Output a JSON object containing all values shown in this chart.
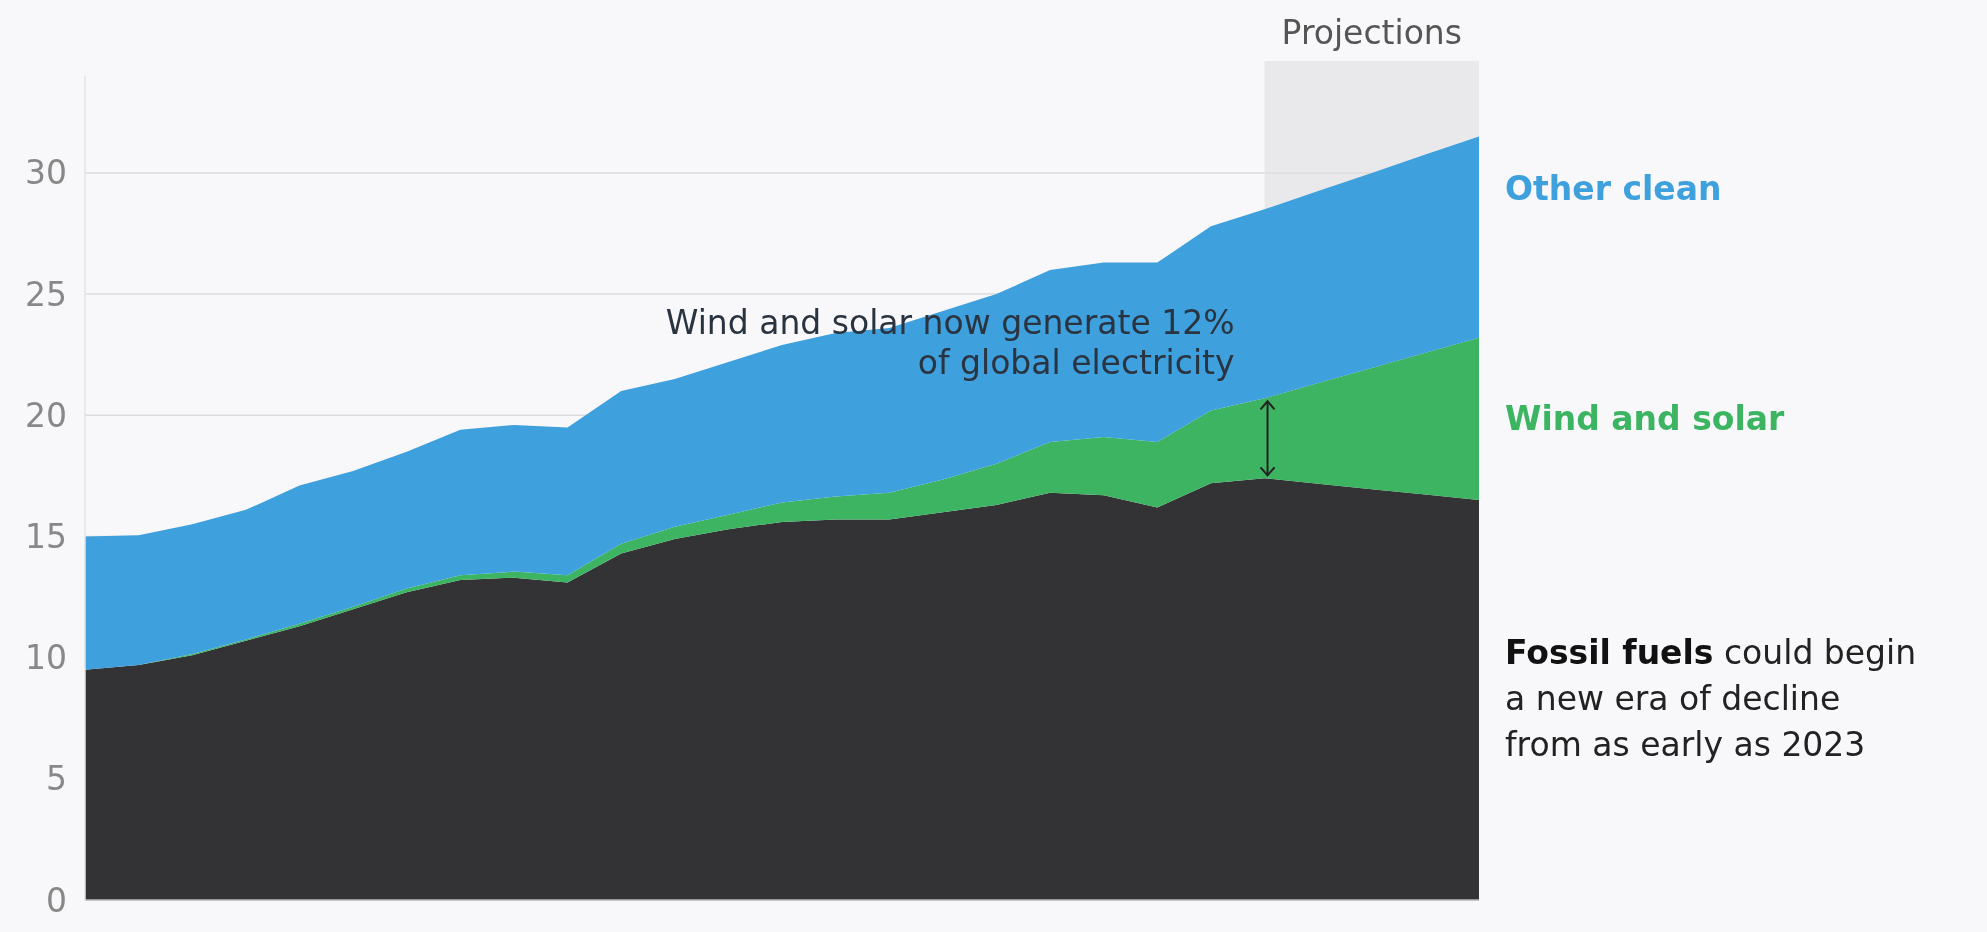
{
  "chart_data": {
    "type": "area",
    "stacked": true,
    "categories": [
      null,
      null,
      null,
      null,
      null,
      null,
      null,
      null,
      null,
      null,
      null,
      null,
      null,
      null,
      null,
      null,
      null,
      null,
      null,
      null,
      null,
      null,
      null,
      null,
      null,
      null,
      null
    ],
    "series": [
      {
        "name": "Fossil fuels",
        "color": "#333335",
        "values": [
          9.5,
          9.7,
          10.1,
          10.7,
          11.3,
          12.0,
          12.7,
          13.2,
          13.3,
          13.1,
          14.3,
          14.9,
          15.3,
          15.6,
          15.7,
          15.7,
          16.0,
          16.3,
          16.8,
          16.7,
          16.2,
          17.2,
          17.4,
          17.18,
          16.95,
          16.73,
          16.5
        ]
      },
      {
        "name": "Wind and solar",
        "color": "#3cb462",
        "values": [
          0,
          0,
          0.05,
          0.05,
          0.1,
          0.1,
          0.15,
          0.2,
          0.25,
          0.3,
          0.4,
          0.5,
          0.6,
          0.8,
          0.95,
          1.1,
          1.35,
          1.7,
          2.1,
          2.4,
          2.7,
          3.0,
          3.3,
          4.15,
          5.0,
          5.85,
          6.7
        ]
      },
      {
        "name": "Other clean",
        "color": "#3ea0dc",
        "values": [
          5.5,
          5.35,
          5.35,
          5.35,
          5.7,
          5.6,
          5.65,
          6.0,
          6.05,
          6.1,
          6.3,
          6.1,
          6.3,
          6.5,
          6.75,
          6.8,
          6.95,
          7.0,
          7.1,
          7.2,
          7.4,
          7.6,
          7.8,
          7.93,
          8.05,
          8.18,
          8.3
        ]
      }
    ],
    "ylim": [
      0,
      34
    ],
    "yticks": [
      0,
      5,
      10,
      15,
      20,
      25,
      30
    ],
    "grid": "y",
    "annotations": [
      "Wind and solar now generate 12% of global electricity",
      "could begin a new era of decline from as early as 2023",
      "Projections"
    ]
  }
}
